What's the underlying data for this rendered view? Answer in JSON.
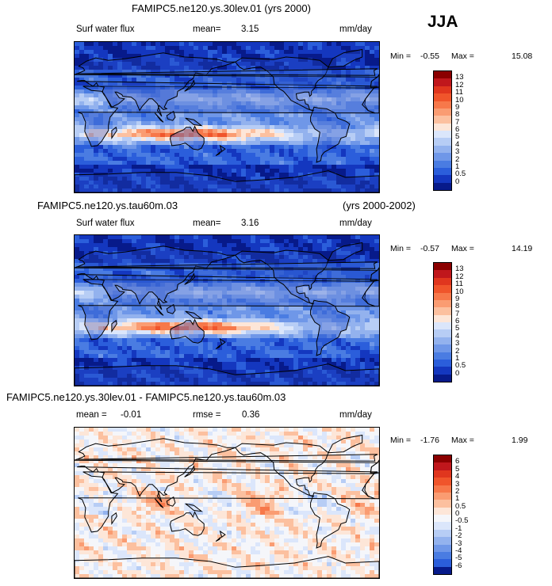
{
  "season": "JJA",
  "panels": [
    {
      "title": "FAMIPC5.ne120.ys.30lev.01 (yrs 2000)",
      "case": "",
      "years": "",
      "variable": "Surf water flux",
      "mean_label": "mean=",
      "mean_value": "3.15",
      "units": "mm/day",
      "min_label": "Min =",
      "min_value": "-0.55",
      "max_label": "Max =",
      "max_value": "15.08",
      "colorbar_labels": [
        "13",
        "12",
        "11",
        "10",
        "9",
        "8",
        "7",
        "6",
        "5",
        "4",
        "3",
        "2",
        "1",
        "0.5",
        "0"
      ],
      "colorbar_colors": [
        "#8b0000",
        "#c0171c",
        "#e0361e",
        "#f0552b",
        "#f7784a",
        "#fa9c72",
        "#fcc09f",
        "#fde6d8",
        "#dbe6fb",
        "#b7cdf5",
        "#93b2ee",
        "#6f97e8",
        "#4a7ce2",
        "#2b5edb",
        "#1437bf",
        "#071a8a"
      ],
      "kind": "flux"
    },
    {
      "title": "",
      "case": "FAMIPC5.ne120.ys.tau60m.03",
      "years": "(yrs 2000-2002)",
      "variable": "Surf water flux",
      "mean_label": "mean=",
      "mean_value": "3.16",
      "units": "mm/day",
      "min_label": "Min =",
      "min_value": "-0.57",
      "max_label": "Max =",
      "max_value": "14.19",
      "colorbar_labels": [
        "13",
        "12",
        "11",
        "10",
        "9",
        "8",
        "7",
        "6",
        "5",
        "4",
        "3",
        "2",
        "1",
        "0.5",
        "0"
      ],
      "colorbar_colors": [
        "#8b0000",
        "#c0171c",
        "#e0361e",
        "#f0552b",
        "#f7784a",
        "#fa9c72",
        "#fcc09f",
        "#fde6d8",
        "#dbe6fb",
        "#b7cdf5",
        "#93b2ee",
        "#6f97e8",
        "#4a7ce2",
        "#2b5edb",
        "#1437bf",
        "#071a8a"
      ],
      "kind": "flux"
    },
    {
      "title": "FAMIPC5.ne120.ys.30lev.01 - FAMIPC5.ne120.ys.tau60m.03",
      "case": "",
      "years": "",
      "variable": "",
      "mean_label": "mean =",
      "mean_value": "-0.01",
      "rmse_label": "rmse =",
      "rmse_value": "0.36",
      "units": "mm/day",
      "min_label": "Min =",
      "min_value": "-1.76",
      "max_label": "Max =",
      "max_value": "1.99",
      "colorbar_labels": [
        "6",
        "5",
        "4",
        "3",
        "2",
        "1",
        "0.5",
        "0",
        "-0.5",
        "-1",
        "-2",
        "-3",
        "-4",
        "-5",
        "-6"
      ],
      "colorbar_colors": [
        "#8b0000",
        "#c0171c",
        "#e0361e",
        "#f0552b",
        "#f7784a",
        "#fa9c72",
        "#fcc09f",
        "#fde6d8",
        "#f5f6fa",
        "#dbe6fb",
        "#b7cdf5",
        "#93b2ee",
        "#6f97e8",
        "#4a7ce2",
        "#2b5edb",
        "#071a8a"
      ],
      "kind": "diff"
    }
  ]
}
